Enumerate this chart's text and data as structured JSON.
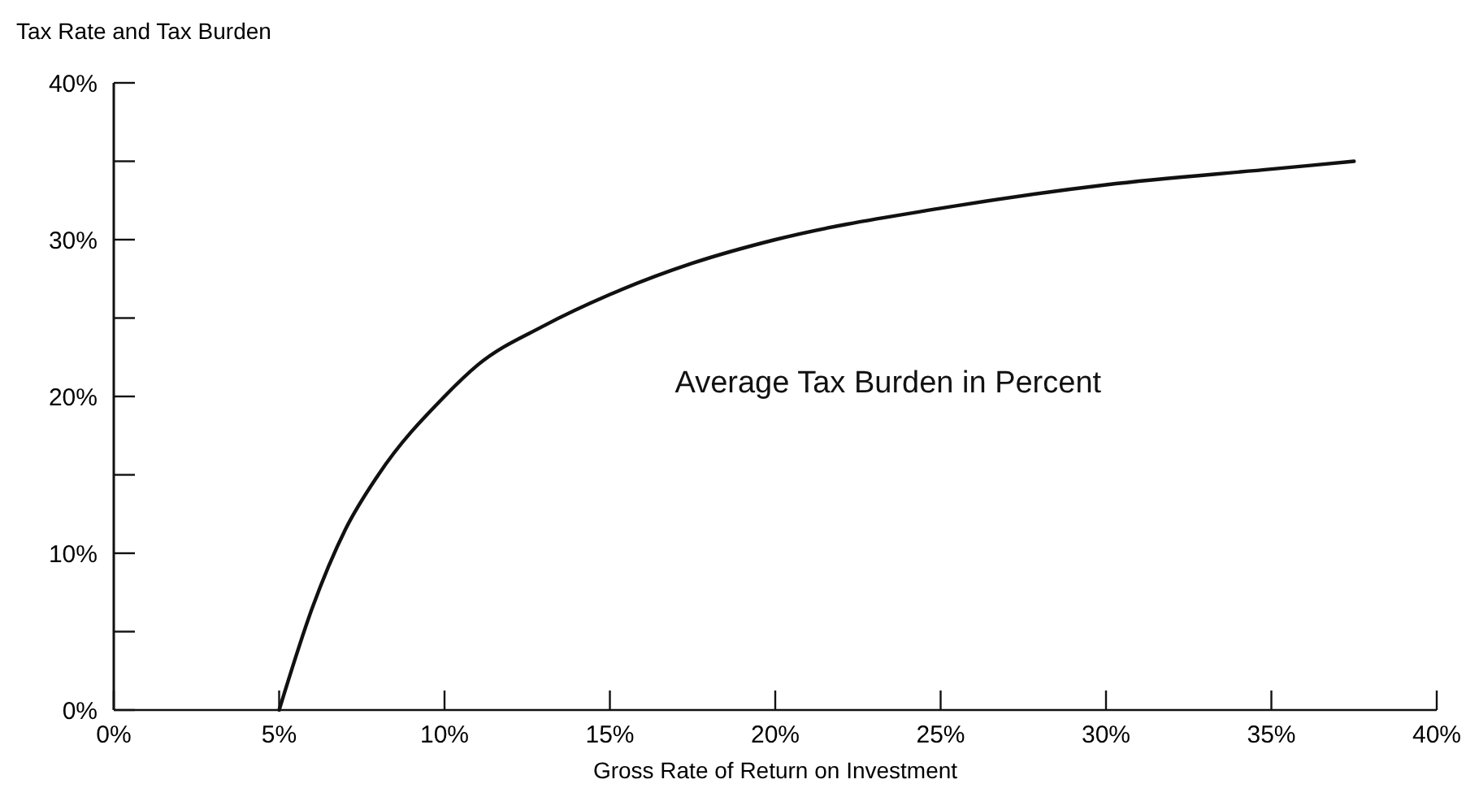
{
  "chart_data": {
    "type": "line",
    "ylabel": "Tax Rate and Tax Burden",
    "xlabel": "Gross Rate of Return on Investment",
    "x": [
      5,
      6,
      7,
      8,
      10,
      11,
      13,
      15,
      17.5,
      20,
      25,
      30,
      35,
      37.5
    ],
    "series": [
      {
        "name": "Average Tax Burden in Percent",
        "color": "#111111",
        "values": [
          0,
          6.5,
          11.5,
          15,
          20,
          22,
          24.5,
          26.5,
          28.5,
          30,
          32,
          33.5,
          34.5,
          35
        ]
      }
    ],
    "xlim": [
      0,
      40
    ],
    "ylim": [
      0,
      40
    ],
    "xticks": [
      {
        "value": 0,
        "label": "0%"
      },
      {
        "value": 5,
        "label": "5%"
      },
      {
        "value": 10,
        "label": "10%"
      },
      {
        "value": 15,
        "label": "15%"
      },
      {
        "value": 20,
        "label": "20%"
      },
      {
        "value": 25,
        "label": "25%"
      },
      {
        "value": 30,
        "label": "30%"
      },
      {
        "value": 35,
        "label": "35%"
      },
      {
        "value": 40,
        "label": "40%"
      }
    ],
    "yticks": [
      {
        "value": 0,
        "label": "0%"
      },
      {
        "value": 5,
        "label": null
      },
      {
        "value": 10,
        "label": "10%"
      },
      {
        "value": 15,
        "label": null
      },
      {
        "value": 20,
        "label": "20%"
      },
      {
        "value": 25,
        "label": null
      },
      {
        "value": 30,
        "label": "30%"
      },
      {
        "value": 35,
        "label": null
      },
      {
        "value": 40,
        "label": "40%"
      }
    ],
    "grid": false,
    "legend": false,
    "marker": "none",
    "line_style": "solid"
  }
}
